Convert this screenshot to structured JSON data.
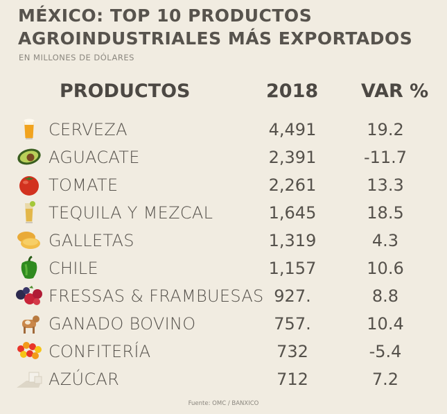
{
  "title": "MÉXICO: TOP 10 PRODUCTOS AGROINDUSTRIALES MÁS EXPORTADOS",
  "subtitle": "EN  MILLONES DE DÓLARES",
  "headers": {
    "product": "PRODUCTOS",
    "year": "2018",
    "var": "VAR %"
  },
  "rows": [
    {
      "icon": "beer-icon",
      "name": "CERVEZA",
      "value": "4,491",
      "var": "19.2"
    },
    {
      "icon": "avocado-icon",
      "name": "AGUACATE",
      "value": "2,391",
      "var": "-11.7"
    },
    {
      "icon": "tomato-icon",
      "name": "TOMATE",
      "value": "2,261",
      "var": "13.3"
    },
    {
      "icon": "tequila-icon",
      "name": "TEQUILA Y MEZCAL",
      "value": "1,645",
      "var": "18.5"
    },
    {
      "icon": "cookies-icon",
      "name": "GALLETAS",
      "value": "1,319",
      "var": "4.3"
    },
    {
      "icon": "pepper-icon",
      "name": "CHILE",
      "value": "1,157",
      "var": "10.6"
    },
    {
      "icon": "berries-icon",
      "name": "FRESSAS & FRAMBUESAS",
      "value": "927.",
      "var": "8.8"
    },
    {
      "icon": "cow-icon",
      "name": "GANADO BOVINO",
      "value": "757.",
      "var": "10.4"
    },
    {
      "icon": "candy-icon",
      "name": "CONFITERÍA",
      "value": "732",
      "var": "-5.4"
    },
    {
      "icon": "sugar-icon",
      "name": "AZÚCAR",
      "value": "712",
      "var": "7.2"
    }
  ],
  "source": "Fuente: OMC / BANXICO",
  "chart_data": {
    "type": "table",
    "title": "MÉXICO: TOP 10 PRODUCTOS AGROINDUSTRIALES MÁS EXPORTADOS",
    "subtitle": "EN  MILLONES DE DÓLARES",
    "columns": [
      "PRODUCTOS",
      "2018",
      "VAR %"
    ],
    "categories": [
      "CERVEZA",
      "AGUACATE",
      "TOMATE",
      "TEQUILA Y MEZCAL",
      "GALLETAS",
      "CHILE",
      "FRESSAS & FRAMBUESAS",
      "GANADO BOVINO",
      "CONFITERÍA",
      "AZÚCAR"
    ],
    "series": [
      {
        "name": "2018",
        "values": [
          4491,
          2391,
          2261,
          1645,
          1319,
          1157,
          927,
          757,
          732,
          712
        ]
      },
      {
        "name": "VAR %",
        "values": [
          19.2,
          -11.7,
          13.3,
          18.5,
          4.3,
          10.6,
          8.8,
          10.4,
          -5.4,
          7.2
        ]
      }
    ]
  }
}
